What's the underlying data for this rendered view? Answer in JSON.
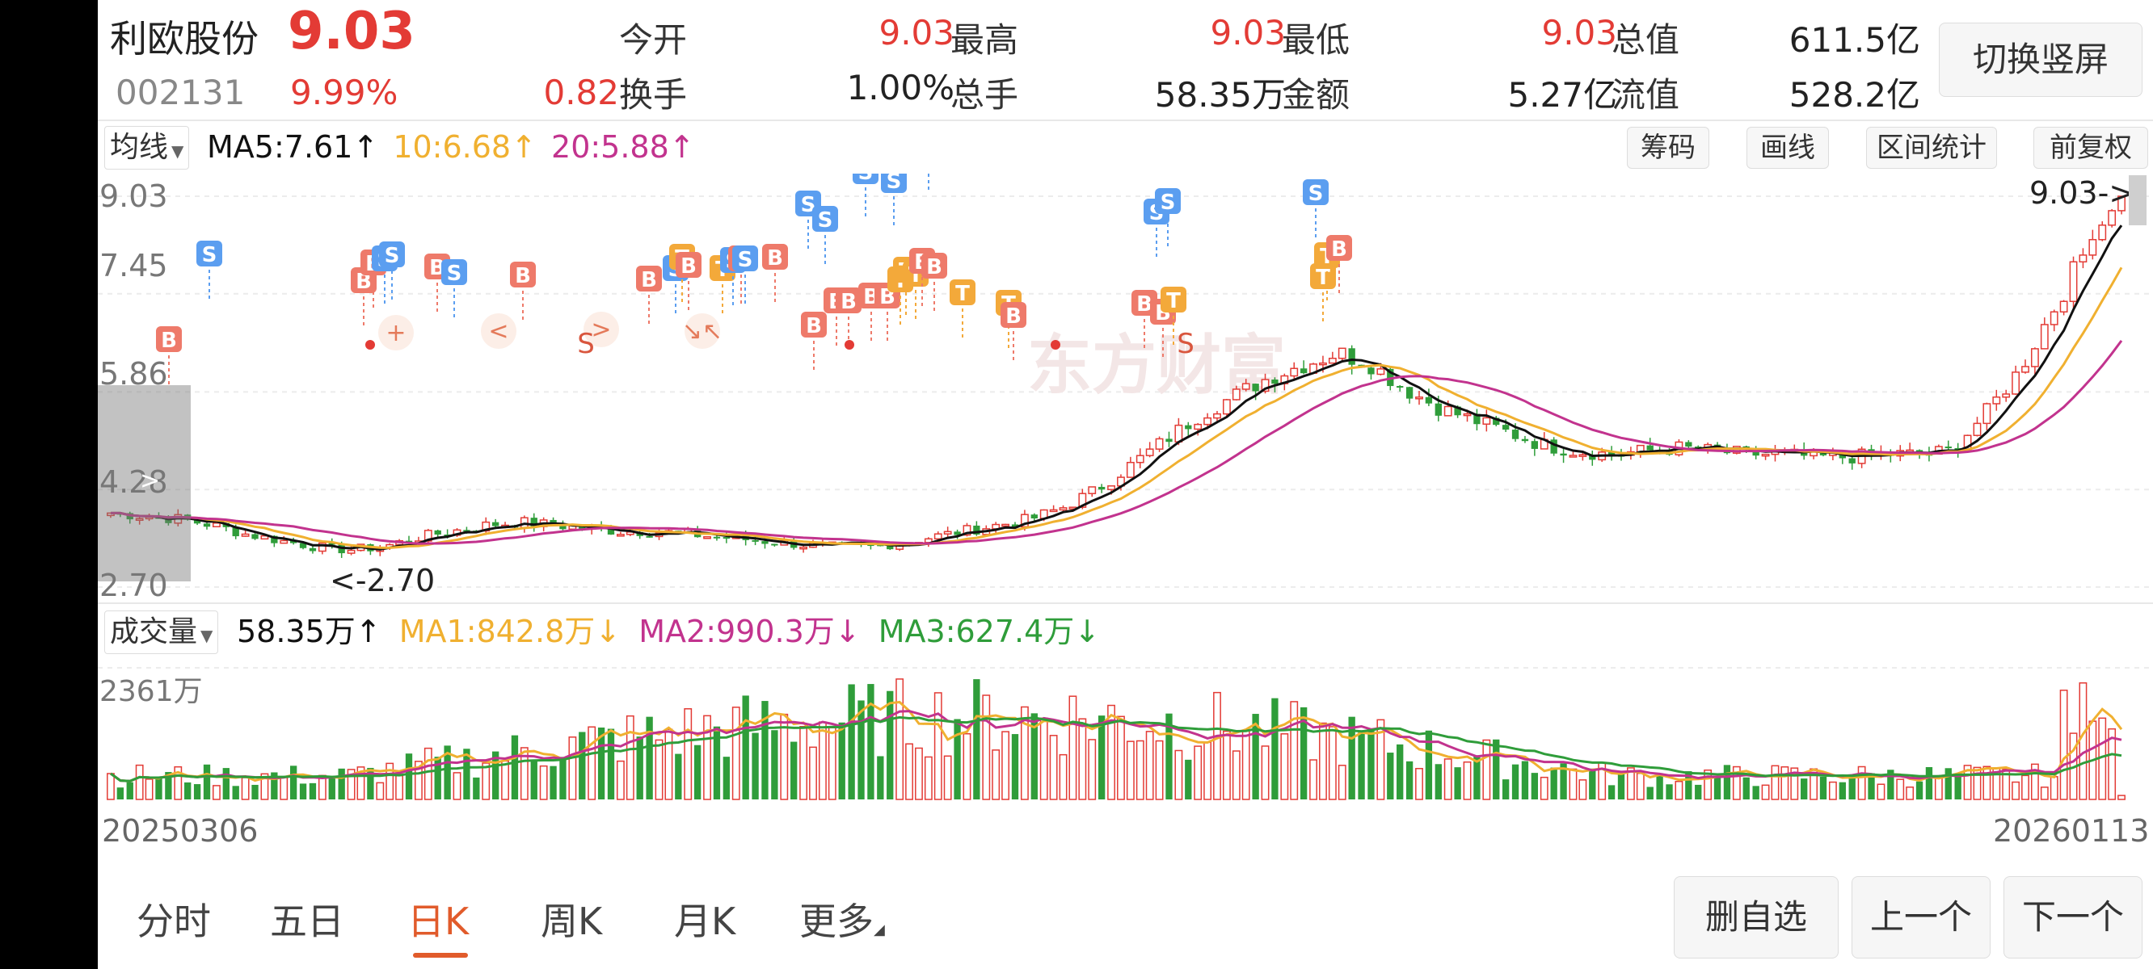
{
  "quote": {
    "name": "利欧股份",
    "code": "002131",
    "price": "9.03",
    "change_pct": "9.99%",
    "change": "0.82",
    "labels": {
      "open": "今开",
      "high": "最高",
      "low": "最低",
      "mktcap": "总值",
      "turnover": "换手",
      "volume": "总手",
      "amount": "金额",
      "float_cap": "流值"
    },
    "values": {
      "open": "9.03",
      "high": "9.03",
      "low": "9.03",
      "mktcap": "611.5亿",
      "turnover": "1.00%",
      "volume": "58.35万",
      "amount": "5.27亿",
      "float_cap": "528.2亿"
    },
    "switch_button": "切换竖屏"
  },
  "ma_bar": {
    "selector": "均线",
    "ma5": "MA5:7.61",
    "ma10": "10:6.68",
    "ma20": "20:5.88",
    "buttons": [
      "筹码",
      "画线",
      "区间统计",
      "前复权"
    ]
  },
  "price_chart": {
    "y_labels": [
      "9.03",
      "7.45",
      "5.86",
      "4.28",
      "2.70"
    ],
    "last_price_marker": "9.03->",
    "min_price_label": "<-2.70",
    "watermark": "东方财富",
    "colors": {
      "up": "#e33b35",
      "down": "#2f9d3a",
      "ma5": "#111111",
      "ma10": "#f0b030",
      "ma20": "#c2338e",
      "buy": "#ee7a6a",
      "sell": "#5b9ef0",
      "t": "#f3a93a"
    }
  },
  "chart_data": {
    "type": "candlestick",
    "x_start": "20250306",
    "x_end": "20260113",
    "ylim": [
      2.7,
      9.03
    ],
    "close_approx": [
      3.9,
      3.85,
      3.8,
      3.7,
      3.55,
      3.45,
      3.35,
      3.3,
      3.35,
      3.5,
      3.6,
      3.7,
      3.75,
      3.7,
      3.65,
      3.6,
      3.6,
      3.55,
      3.5,
      3.45,
      3.4,
      3.35,
      3.35,
      3.4,
      3.5,
      3.6,
      3.7,
      3.8,
      4.0,
      4.3,
      4.7,
      5.1,
      5.5,
      5.8,
      6.1,
      6.3,
      6.5,
      6.3,
      5.9,
      5.6,
      5.4,
      5.2,
      5.0,
      4.9,
      4.85,
      4.9,
      4.95,
      4.9,
      4.85,
      4.85,
      4.8,
      4.8,
      4.85,
      4.85,
      4.9,
      5.5,
      6.2,
      7.2,
      8.2,
      9.03
    ],
    "volume_max_label": "2361万"
  },
  "volume_bar": {
    "selector": "成交量",
    "current": "58.35万",
    "ma1": "MA1:842.8万",
    "ma2": "MA2:990.3万",
    "ma3": "MA3:627.4万"
  },
  "dates": {
    "start": "20250306",
    "end": "20260113"
  },
  "period_tabs": [
    "分时",
    "五日",
    "日K",
    "周K",
    "月K",
    "更多"
  ],
  "active_tab": "日K",
  "nav_buttons": [
    "删自选",
    "上一个",
    "下一个"
  ],
  "arrows": {
    "up": "↑",
    "down": "↓"
  },
  "overlay_glyphs": {
    "plus": "+",
    "left": "<",
    "right": ">",
    "shrink": "↘↖",
    "s_label": "S"
  }
}
